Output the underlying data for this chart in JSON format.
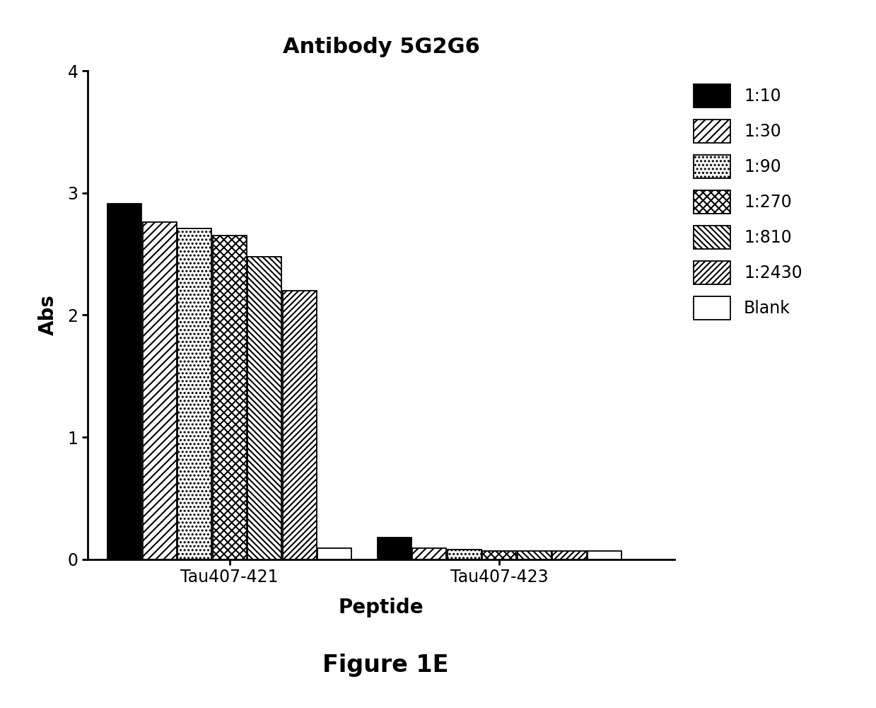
{
  "title": "Antibody 5G2G6",
  "xlabel": "Peptide",
  "ylabel": "Abs",
  "figure_label": "Figure 1E",
  "categories": [
    "Tau407-421",
    "Tau407-423"
  ],
  "series_labels": [
    "1:10",
    "1:30",
    "1:90",
    "1:270",
    "1:810",
    "1:2430",
    "Blank"
  ],
  "values": {
    "Tau407-421": [
      2.91,
      2.76,
      2.71,
      2.65,
      2.48,
      2.2,
      0.09
    ],
    "Tau407-423": [
      0.18,
      0.09,
      0.08,
      0.07,
      0.07,
      0.07,
      0.07
    ]
  },
  "ylim": [
    0,
    4
  ],
  "yticks": [
    0,
    1,
    2,
    3,
    4
  ],
  "bar_width": 0.072,
  "background_color": "#ffffff",
  "title_fontsize": 22,
  "label_fontsize": 20,
  "tick_fontsize": 17,
  "legend_fontsize": 17
}
